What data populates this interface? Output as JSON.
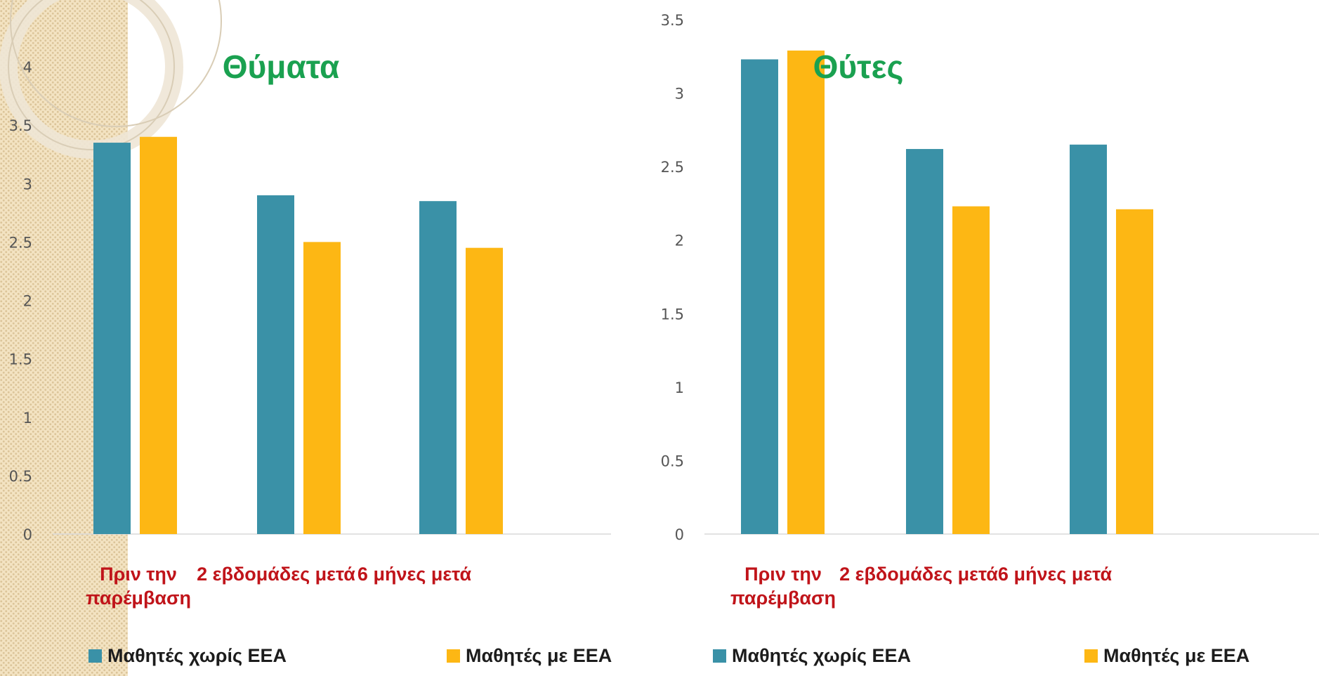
{
  "chart_data": [
    {
      "type": "bar",
      "title": "Θύματα",
      "categories": [
        "Πριν την παρέμβαση",
        "2 εβδομάδες μετά",
        "6 μήνες μετά"
      ],
      "series": [
        {
          "name": "Μαθητές χωρίς ΕΕΑ",
          "color": "#3a91a7",
          "values": [
            3.35,
            2.9,
            2.85
          ]
        },
        {
          "name": "Μαθητές με ΕΕΑ",
          "color": "#fdb714",
          "values": [
            3.4,
            2.5,
            2.45
          ]
        }
      ],
      "yticks": [
        "0",
        "0.5",
        "1",
        "1.5",
        "2",
        "2.5",
        "3",
        "3.5",
        "4"
      ],
      "ylim": [
        0,
        4
      ],
      "legend": "bottom",
      "grid": false
    },
    {
      "type": "bar",
      "title": "Θύτες",
      "categories": [
        "Πριν την παρέμβαση",
        "2 εβδομάδες μετά",
        "6 μήνες μετά"
      ],
      "series": [
        {
          "name": "Μαθητές χωρίς ΕΕΑ",
          "color": "#3a91a7",
          "values": [
            3.23,
            2.62,
            2.65
          ]
        },
        {
          "name": "Μαθητές με ΕΕΑ",
          "color": "#fdb714",
          "values": [
            3.29,
            2.23,
            2.21
          ]
        }
      ],
      "yticks": [
        "0",
        "0.5",
        "1",
        "1.5",
        "2",
        "2.5",
        "3",
        "3.5"
      ],
      "ylim": [
        0,
        3.5
      ],
      "legend": "bottom",
      "grid": false
    }
  ]
}
